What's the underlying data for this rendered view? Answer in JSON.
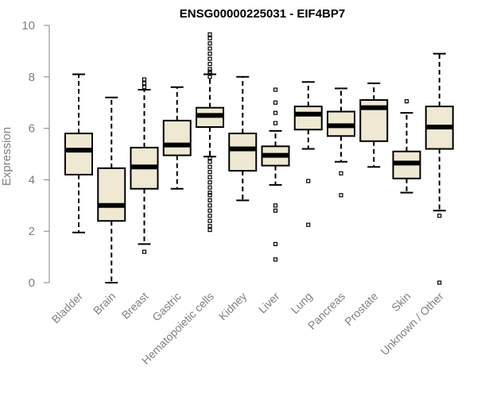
{
  "chart_data": {
    "type": "boxplot",
    "title": "ENSG00000225031 - EIF4BP7",
    "xlabel": "",
    "ylabel": "Expression",
    "ylim": [
      0,
      10
    ],
    "yticks": [
      0,
      2,
      4,
      6,
      8,
      10
    ],
    "grid": false,
    "colors": {
      "box_fill": "#efe8d2",
      "stroke": "#000000",
      "axis_text": "#808080"
    },
    "categories": [
      "Bladder",
      "Brain",
      "Breast",
      "Gastric",
      "Hematopoietic cells",
      "Kidney",
      "Liver",
      "Lung",
      "Pancreas",
      "Prostate",
      "Skin",
      "Unknown / Other"
    ],
    "boxes": [
      {
        "category": "Bladder",
        "whislo": 1.95,
        "q1": 4.2,
        "med": 5.15,
        "q3": 5.8,
        "whishi": 8.1,
        "fliers": []
      },
      {
        "category": "Brain",
        "whislo": 0.0,
        "q1": 2.4,
        "med": 3.0,
        "q3": 4.45,
        "whishi": 7.2,
        "fliers": []
      },
      {
        "category": "Breast",
        "whislo": 1.5,
        "q1": 3.65,
        "med": 4.5,
        "q3": 5.25,
        "whishi": 7.5,
        "fliers": [
          1.2,
          7.6,
          7.75,
          7.9
        ]
      },
      {
        "category": "Gastric",
        "whislo": 3.65,
        "q1": 4.95,
        "med": 5.35,
        "q3": 6.3,
        "whishi": 7.6,
        "fliers": []
      },
      {
        "category": "Hematopoietic cells",
        "whislo": 4.9,
        "q1": 6.05,
        "med": 6.5,
        "q3": 6.8,
        "whishi": 8.1,
        "fliers": [
          9.65,
          9.5,
          9.3,
          9.1,
          8.9,
          8.7,
          8.5,
          8.3,
          8.2,
          8.15,
          8.0,
          4.85,
          4.7,
          4.5,
          4.3,
          4.1,
          3.9,
          3.7,
          3.5,
          3.4,
          3.2,
          3.0,
          2.8,
          2.6,
          2.4,
          2.2,
          2.05
        ]
      },
      {
        "category": "Kidney",
        "whislo": 3.2,
        "q1": 4.35,
        "med": 5.2,
        "q3": 5.8,
        "whishi": 8.0,
        "fliers": []
      },
      {
        "category": "Liver",
        "whislo": 3.8,
        "q1": 4.55,
        "med": 4.95,
        "q3": 5.3,
        "whishi": 5.9,
        "fliers": [
          7.5,
          7.0,
          6.6,
          6.2,
          3.0,
          2.8,
          1.5,
          0.9
        ]
      },
      {
        "category": "Lung",
        "whislo": 5.2,
        "q1": 5.95,
        "med": 6.55,
        "q3": 6.85,
        "whishi": 7.8,
        "fliers": [
          3.95,
          2.25
        ]
      },
      {
        "category": "Pancreas",
        "whislo": 4.7,
        "q1": 5.7,
        "med": 6.1,
        "q3": 6.65,
        "whishi": 7.55,
        "fliers": [
          4.25,
          3.4
        ]
      },
      {
        "category": "Prostate",
        "whislo": 4.5,
        "q1": 5.5,
        "med": 6.8,
        "q3": 7.1,
        "whishi": 7.75,
        "fliers": []
      },
      {
        "category": "Skin",
        "whislo": 3.5,
        "q1": 4.05,
        "med": 4.65,
        "q3": 5.1,
        "whishi": 6.6,
        "fliers": [
          7.05
        ]
      },
      {
        "category": "Unknown / Other",
        "whislo": 2.8,
        "q1": 5.2,
        "med": 6.05,
        "q3": 6.85,
        "whishi": 8.9,
        "fliers": [
          2.6,
          0.0
        ]
      }
    ]
  }
}
